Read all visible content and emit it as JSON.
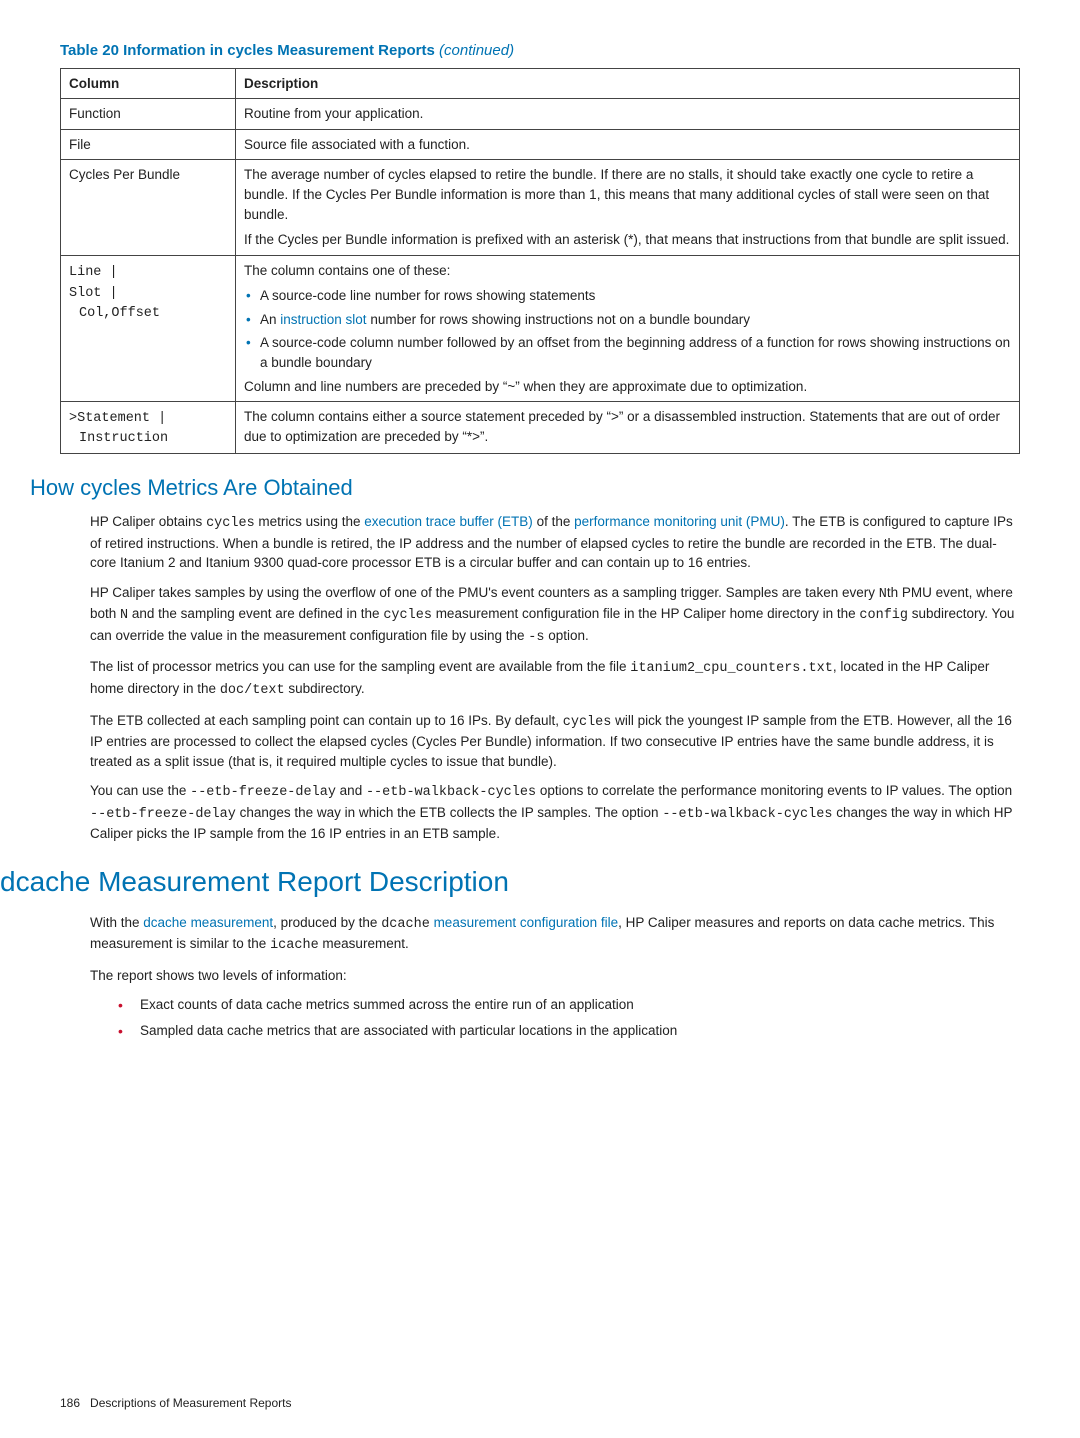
{
  "tableTitle": {
    "main": "Table 20 Information in cycles Measurement Reports",
    "cont": "(continued)"
  },
  "table": {
    "headers": [
      "Column",
      "Description"
    ],
    "rows": {
      "r0": {
        "c": "Function",
        "d": "Routine from your application."
      },
      "r1": {
        "c": "File",
        "d": "Source file associated with a function."
      },
      "r2": {
        "c": "Cycles Per Bundle",
        "p1": "The average number of cycles elapsed to retire the bundle. If there are no stalls, it should take exactly one cycle to retire a bundle. If the Cycles Per Bundle information is more than 1, this means that many additional cycles of stall were seen on that bundle.",
        "p2": "If the Cycles per Bundle information is prefixed with an asterisk (*), that means that instructions from that bundle are split issued."
      },
      "r3": {
        "c1": "Line |",
        "c2": "Slot |",
        "c3": " Col,Offset",
        "lead": "The column contains one of these:",
        "b1": "A source-code line number for rows showing statements",
        "b2a": "An ",
        "b2link": "instruction slot",
        "b2b": " number for rows showing instructions not on a bundle boundary",
        "b3": "A source-code column number followed by an offset from the beginning address of a function for rows showing instructions on a bundle boundary",
        "tail": "Column and line numbers are preceded by “~” when they are approximate due to optimization."
      },
      "r4": {
        "c1": ">Statement |",
        "c2": " Instruction",
        "d": "The column contains either a source statement preceded by “>” or a disassembled instruction. Statements that are out of order due to optimization are preceded by “*>”."
      }
    }
  },
  "sec1": {
    "title": "How cycles Metrics Are Obtained",
    "p1a": "HP Caliper obtains ",
    "p1m1": "cycles",
    "p1b": " metrics using the ",
    "p1l1": "execution trace buffer (ETB)",
    "p1c": " of the ",
    "p1l2": "performance monitoring unit (PMU)",
    "p1d": ". The ETB is configured to capture IPs of retired instructions. When a bundle is retired, the IP address and the number of elapsed cycles to retire the bundle are recorded in the ETB. The dual-core Itanium 2 and Itanium 9300 quad-core processor ETB is a circular buffer and can contain up to 16 entries.",
    "p2a": "HP Caliper takes samples by using the overflow of one of the PMU's event counters as a sampling trigger. Samples are taken every ",
    "p2m1": "N",
    "p2b": "th PMU event, where both ",
    "p2m2": "N",
    "p2c": " and the sampling event are defined in the ",
    "p2m3": "cycles",
    "p2d": " measurement configuration file in the HP Caliper home directory in the ",
    "p2m4": "config",
    "p2e": " subdirectory. You can override the value in the measurement configuration file by using the ",
    "p2m5": "-s",
    "p2f": " option.",
    "p3a": "The list of processor metrics you can use for the sampling event are available from the file ",
    "p3m1": "itanium2_cpu_counters.txt",
    "p3b": ", located in the HP Caliper home directory in the ",
    "p3m2": "doc/text",
    "p3c": " subdirectory.",
    "p4a": "The ETB collected at each sampling point can contain up to 16 IPs. By default, ",
    "p4m1": "cycles",
    "p4b": " will pick the youngest IP sample from the ETB. However, all the 16 IP entries are processed to collect the elapsed cycles (Cycles Per Bundle) information. If two consecutive IP entries have the same bundle address, it is treated as a split issue (that is, it required multiple cycles to issue that bundle).",
    "p5a": "You can use the ",
    "p5m1": "--etb-freeze-delay",
    "p5b": " and ",
    "p5m2": "--etb-walkback-cycles",
    "p5c": " options to correlate the performance monitoring events to IP values. The option ",
    "p5m3": "--etb-freeze-delay",
    "p5d": " changes the way in which the ETB collects the IP samples. The option ",
    "p5m4": "--etb-walkback-cycles",
    "p5e": " changes the way in which HP Caliper picks the IP sample from the 16 IP entries in an ETB sample."
  },
  "sec2": {
    "title": "dcache Measurement Report Description",
    "p1a": "With the ",
    "p1l1": "dcache measurement",
    "p1b": ", produced by the ",
    "p1m1": "dcache",
    "p1c": " ",
    "p1l2": "measurement configuration file",
    "p1d": ", HP Caliper measures and reports on data cache metrics. This measurement is similar to the ",
    "p1m2": "icache",
    "p1e": " measurement.",
    "p2": "The report shows two levels of information:",
    "b1": "Exact counts of data cache metrics summed across the entire run of an application",
    "b2": "Sampled data cache metrics that are associated with particular locations in the application"
  },
  "footer": {
    "page": "186",
    "label": "Descriptions of Measurement Reports"
  }
}
